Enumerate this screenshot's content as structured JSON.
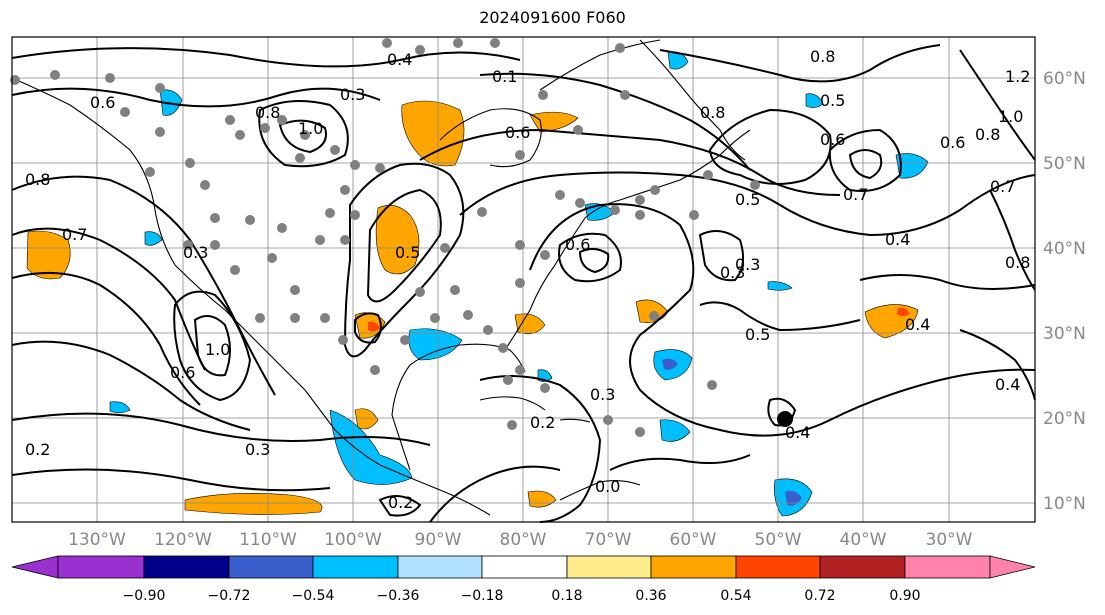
{
  "title": "2024091600 F060",
  "longitude_labels": [
    "130°W",
    "120°W",
    "110°W",
    "100°W",
    "90°W",
    "80°W",
    "70°W",
    "60°W",
    "50°W",
    "40°W",
    "30°W"
  ],
  "latitude_labels": [
    "60°N",
    "50°N",
    "40°N",
    "30°N",
    "20°N",
    "10°N"
  ],
  "colorbar": {
    "ticks": [
      "−0.90",
      "−0.72",
      "−0.54",
      "−0.36",
      "−0.18",
      "0.18",
      "0.36",
      "0.54",
      "0.72",
      "0.90"
    ],
    "colors": [
      "#9b30d0",
      "#00008b",
      "#3a5fcd",
      "#00bfff",
      "#b0e2ff",
      "#ffffff",
      "#ffec8b",
      "#ffa500",
      "#ff4500",
      "#b22222",
      "#ff82ab"
    ]
  },
  "contour_labels": [
    "0.6",
    "0.8",
    "0.7",
    "0.3",
    "0.4",
    "0.8",
    "1.0",
    "0.3",
    "0.6",
    "0.1",
    "0.8",
    "0.6",
    "0.8",
    "0.5",
    "0.6",
    "0.7",
    "0.5",
    "0.4",
    "0.3",
    "0.5",
    "0.4",
    "0.6",
    "0.8",
    "1.0",
    "1.2",
    "0.7",
    "0.8",
    "0.2",
    "0.3",
    "0.2",
    "0.3",
    "0.2",
    "0.0",
    "0.6",
    "1.0",
    "0.3",
    "0.4",
    "0.4",
    "0.5"
  ],
  "colors": {
    "axis": "#000000",
    "grid": "#888888",
    "contour": "#000000",
    "station": "#808080"
  }
}
